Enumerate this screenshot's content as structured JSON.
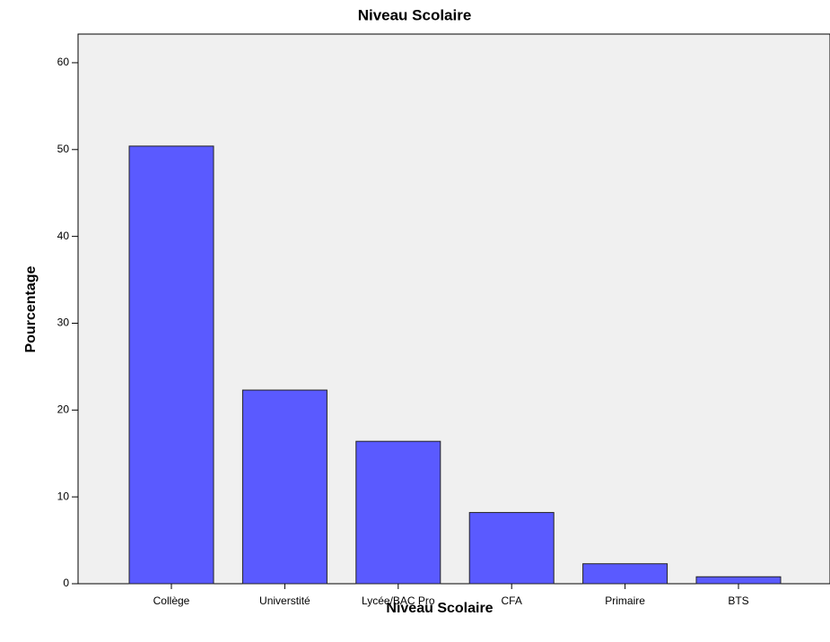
{
  "chart_data": {
    "type": "bar",
    "title": "Niveau Scolaire",
    "x_label": "Niveau Scolaire",
    "y_label": "Pourcentage",
    "categories": [
      "Collège",
      "Universtité",
      "Lycée/BAC Pro",
      "CFA",
      "Primaire",
      "BTS"
    ],
    "values": [
      50.4,
      22.3,
      16.4,
      8.2,
      2.3,
      0.8
    ],
    "color": "#5a5aff",
    "ylim": [
      0,
      63.3
    ],
    "yticks": [
      0,
      10,
      20,
      30,
      40,
      50,
      60
    ],
    "grid": false
  }
}
